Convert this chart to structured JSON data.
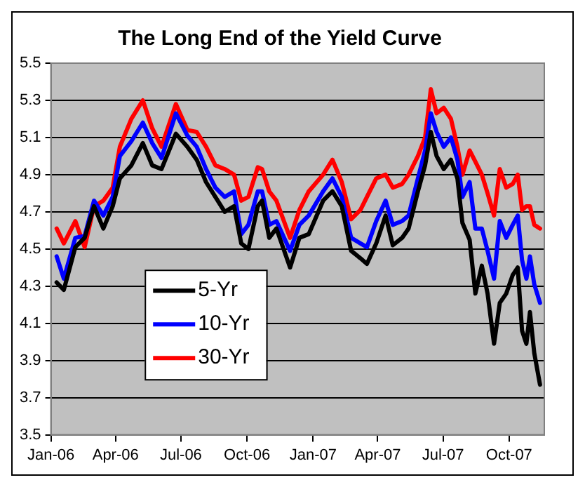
{
  "chart_data": {
    "type": "line",
    "title": "The Long End of the Yield Curve",
    "x": [
      "2006-01-09",
      "2006-01-19",
      "2006-02-04",
      "2006-02-17",
      "2006-03-02",
      "2006-03-15",
      "2006-03-28",
      "2006-04-07",
      "2006-04-23",
      "2006-05-09",
      "2006-05-22",
      "2006-06-04",
      "2006-06-24",
      "2006-07-10",
      "2006-07-23",
      "2006-08-05",
      "2006-08-18",
      "2006-08-31",
      "2006-09-13",
      "2006-09-23",
      "2006-10-03",
      "2006-10-16",
      "2006-10-22",
      "2006-11-01",
      "2006-11-11",
      "2006-11-30",
      "2006-12-13",
      "2006-12-26",
      "2007-01-15",
      "2007-01-28",
      "2007-02-10",
      "2007-02-23",
      "2007-03-08",
      "2007-03-17",
      "2007-03-30",
      "2007-04-12",
      "2007-04-22",
      "2007-05-05",
      "2007-05-14",
      "2007-05-27",
      "2007-06-06",
      "2007-06-14",
      "2007-06-22",
      "2007-07-02",
      "2007-07-12",
      "2007-07-21",
      "2007-07-28",
      "2007-08-07",
      "2007-08-15",
      "2007-08-24",
      "2007-09-01",
      "2007-09-10",
      "2007-09-18",
      "2007-09-27",
      "2007-10-06",
      "2007-10-13",
      "2007-10-19",
      "2007-10-25",
      "2007-10-30",
      "2007-11-05",
      "2007-11-13"
    ],
    "series": [
      {
        "name": "5-Yr",
        "color": "#000000",
        "values": [
          4.32,
          4.28,
          4.51,
          4.56,
          4.73,
          4.61,
          4.73,
          4.88,
          4.95,
          5.07,
          4.95,
          4.93,
          5.12,
          5.05,
          4.98,
          4.86,
          4.78,
          4.7,
          4.73,
          4.53,
          4.5,
          4.73,
          4.76,
          4.56,
          4.61,
          4.4,
          4.56,
          4.58,
          4.76,
          4.81,
          4.73,
          4.49,
          4.45,
          4.42,
          4.53,
          4.68,
          4.52,
          4.56,
          4.61,
          4.81,
          4.95,
          5.13,
          5.0,
          4.93,
          4.98,
          4.88,
          4.64,
          4.55,
          4.26,
          4.41,
          4.26,
          3.99,
          4.21,
          4.26,
          4.36,
          4.4,
          4.06,
          3.99,
          4.16,
          3.94,
          3.77
        ]
      },
      {
        "name": "10-Yr",
        "color": "#0000ff",
        "values": [
          4.46,
          4.34,
          4.56,
          4.57,
          4.76,
          4.68,
          4.78,
          5.0,
          5.08,
          5.18,
          5.07,
          4.99,
          5.23,
          5.11,
          5.05,
          4.93,
          4.83,
          4.78,
          4.81,
          4.58,
          4.63,
          4.81,
          4.81,
          4.63,
          4.65,
          4.49,
          4.63,
          4.68,
          4.81,
          4.88,
          4.78,
          4.56,
          4.53,
          4.51,
          4.65,
          4.76,
          4.63,
          4.65,
          4.68,
          4.88,
          5.03,
          5.23,
          5.13,
          5.05,
          5.1,
          4.98,
          4.78,
          4.86,
          4.61,
          4.61,
          4.49,
          4.34,
          4.65,
          4.56,
          4.63,
          4.68,
          4.44,
          4.34,
          4.46,
          4.31,
          4.21
        ]
      },
      {
        "name": "30-Yr",
        "color": "#ff0000",
        "values": [
          4.61,
          4.53,
          4.65,
          4.51,
          4.73,
          4.76,
          4.83,
          5.05,
          5.2,
          5.3,
          5.15,
          5.05,
          5.28,
          5.14,
          5.13,
          5.05,
          4.95,
          4.93,
          4.9,
          4.76,
          4.78,
          4.94,
          4.93,
          4.81,
          4.76,
          4.56,
          4.71,
          4.81,
          4.9,
          4.98,
          4.86,
          4.66,
          4.71,
          4.78,
          4.88,
          4.9,
          4.83,
          4.85,
          4.9,
          5.0,
          5.1,
          5.36,
          5.23,
          5.26,
          5.2,
          5.05,
          4.9,
          5.03,
          4.97,
          4.9,
          4.8,
          4.68,
          4.93,
          4.83,
          4.85,
          4.9,
          4.71,
          4.73,
          4.73,
          4.63,
          4.61
        ]
      }
    ],
    "xlim": [
      "2006-01-01",
      "2007-11-19"
    ],
    "xticks": [
      {
        "value": "2006-01-01",
        "label": "Jan-06"
      },
      {
        "value": "2006-04-01",
        "label": "Apr-06"
      },
      {
        "value": "2006-07-01",
        "label": "Jul-06"
      },
      {
        "value": "2006-10-01",
        "label": "Oct-06"
      },
      {
        "value": "2007-01-01",
        "label": "Jan-07"
      },
      {
        "value": "2007-04-01",
        "label": "Apr-07"
      },
      {
        "value": "2007-07-01",
        "label": "Jul-07"
      },
      {
        "value": "2007-10-01",
        "label": "Oct-07"
      }
    ],
    "ylim": [
      3.5,
      5.5
    ],
    "yticks": [
      3.5,
      3.7,
      3.9,
      4.1,
      4.3,
      4.5,
      4.7,
      4.9,
      5.1,
      5.3,
      5.5
    ],
    "grid": "y",
    "legend": "bottom left",
    "marker": "none",
    "line_style": "solid"
  }
}
